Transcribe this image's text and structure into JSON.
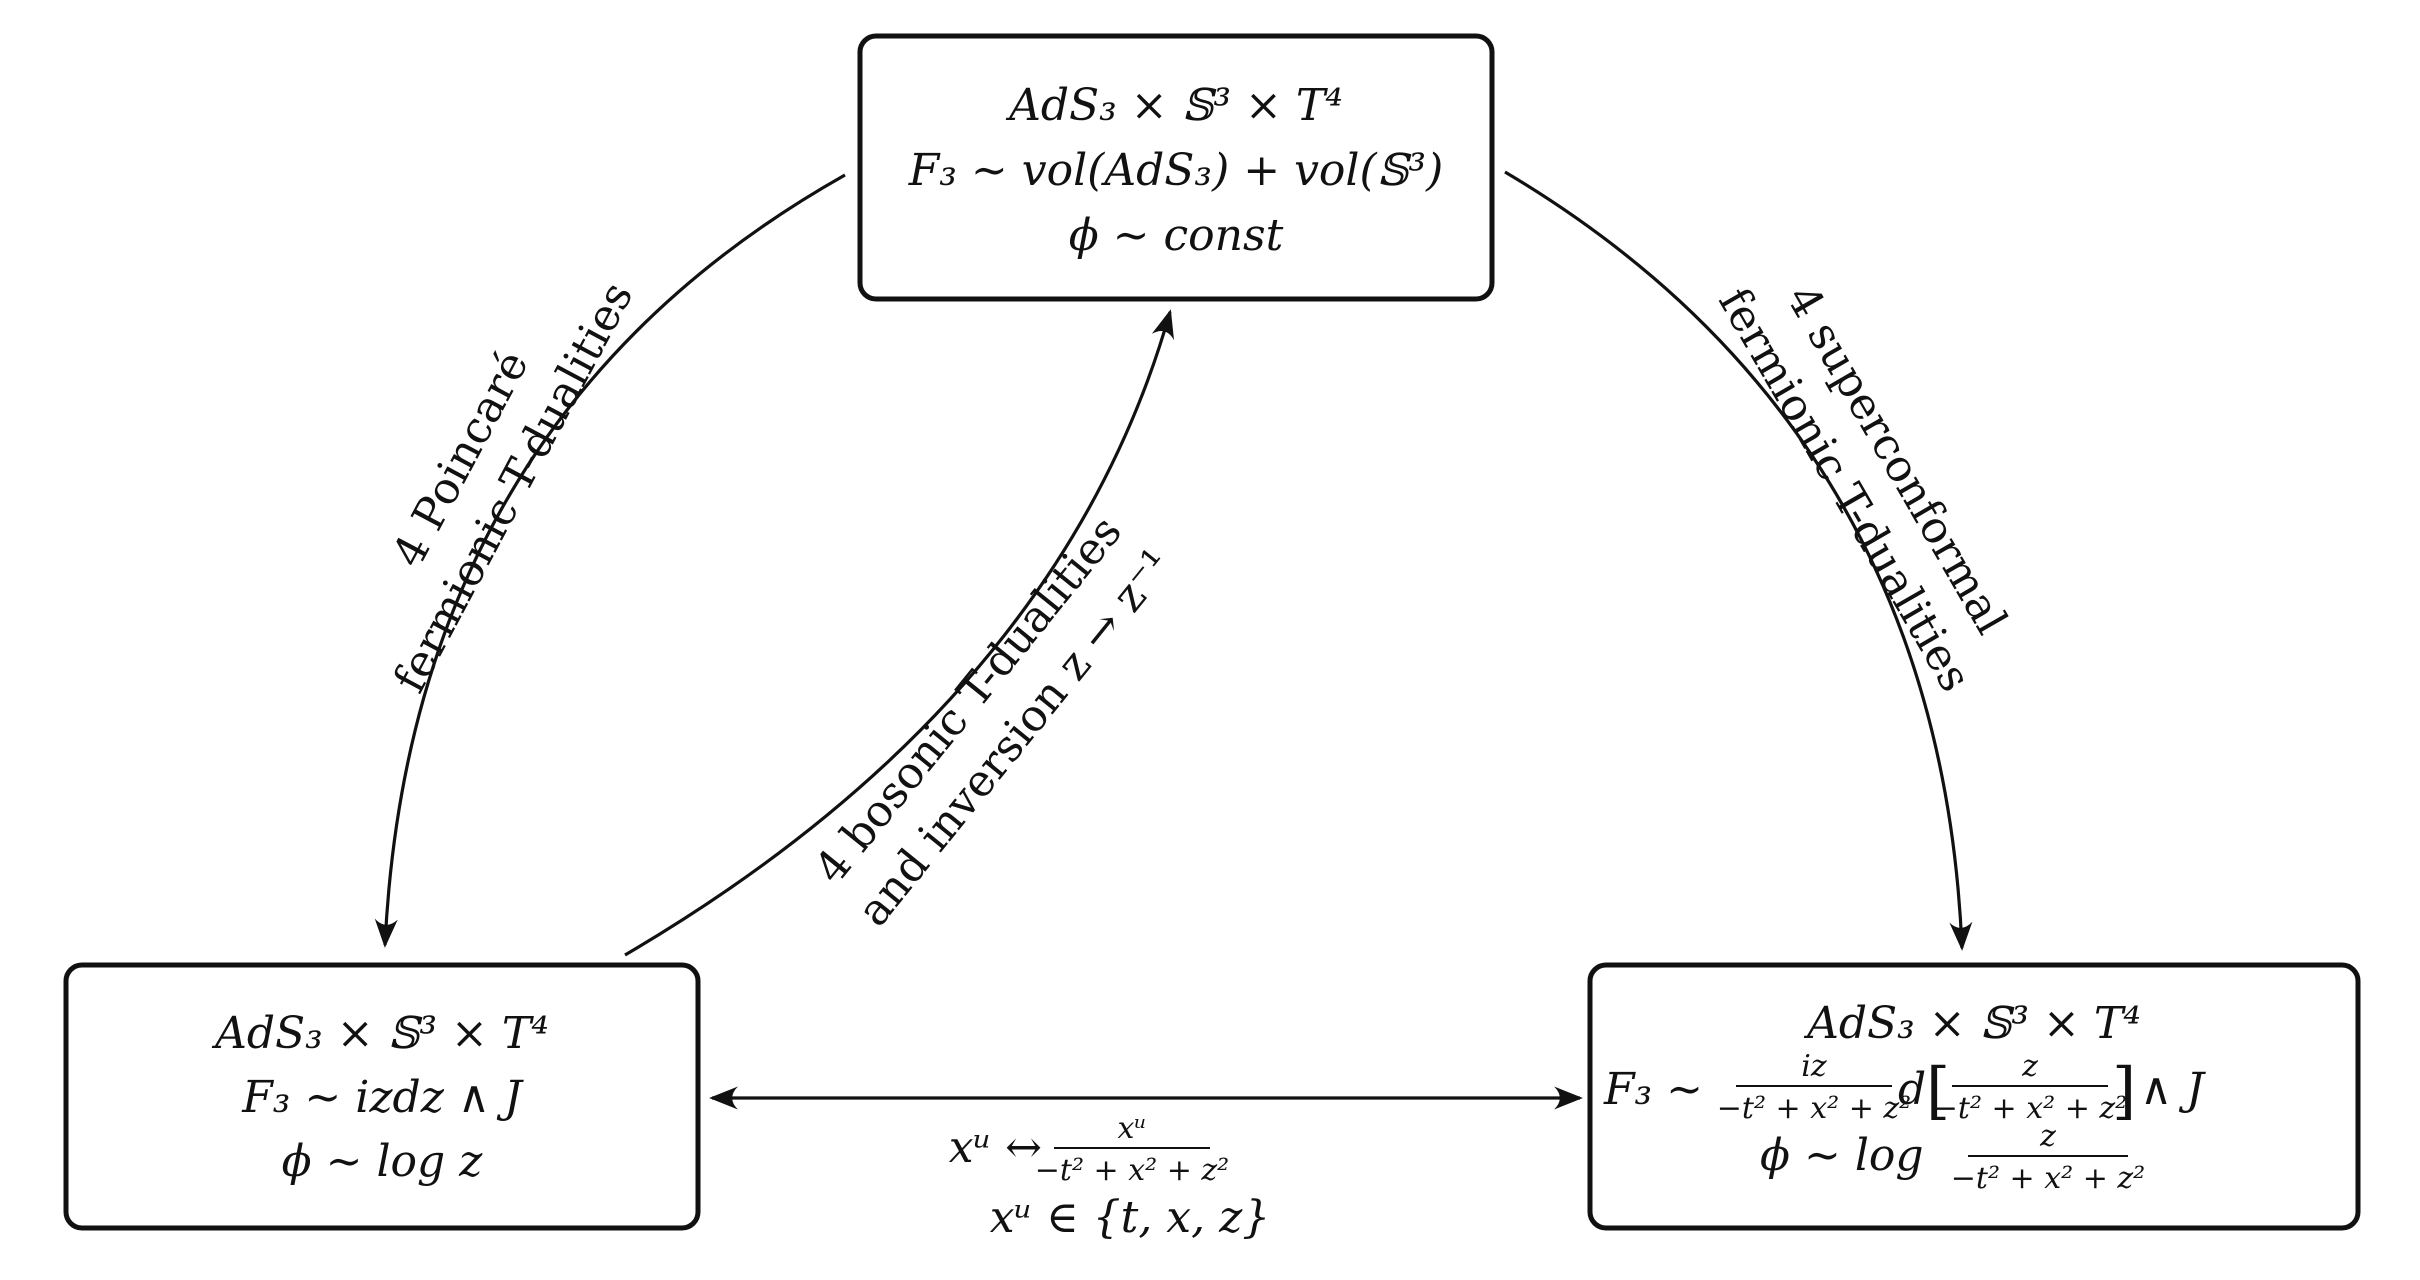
{
  "nodes": {
    "top": {
      "geometry": "AdS₃ × 𝕊³ × T⁴",
      "flux": "F₃ ∼ vol(AdS₃) + vol(𝕊³)",
      "dilaton": "ϕ ∼ const"
    },
    "bottom_left": {
      "geometry": "AdS₃ × 𝕊³ × T⁴",
      "flux": "F₃ ∼ izdz ∧ J",
      "dilaton": "ϕ ∼ log z"
    },
    "bottom_right": {
      "geometry": "AdS₃ × 𝕊³ × T⁴",
      "flux_prefix": "F₃ ∼",
      "flux_frac_num": "iz",
      "flux_frac_den": "−t² + x² + z²",
      "flux_d": "d",
      "flux_bracket_num": "z",
      "flux_bracket_den": "−t² + x² + z²",
      "flux_suffix": "∧ J",
      "dilaton_prefix": "ϕ ∼ log",
      "dilaton_frac_num": "z",
      "dilaton_frac_den": "−t² + x² + z²"
    }
  },
  "edges": {
    "left": {
      "line1": "4 Poincaré",
      "line2": "fermionic T-dualities"
    },
    "right": {
      "line1": "4 superconformal",
      "line2": "fermionic T-dualities"
    },
    "middle": {
      "line1": "4 bosonic T-dualities",
      "line2": "and inversion z → z⁻¹"
    },
    "bottom": {
      "map_prefix": "xᵘ ↔",
      "map_num": "xᵘ",
      "map_den": "−t² + x² + z²",
      "domain": "xᵘ ∈ {t, x, z}"
    }
  }
}
